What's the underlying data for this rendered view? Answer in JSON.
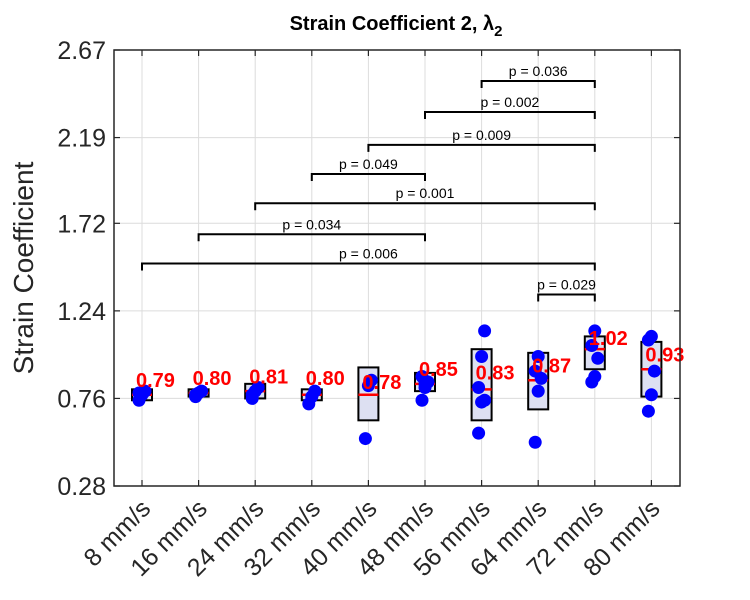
{
  "chart_data": {
    "type": "box",
    "title": "Strain Coefficient 2, λ",
    "title_subscript": "2",
    "ylabel": "Strain Coefficient",
    "xlabel": "",
    "ylim": [
      0.28,
      2.67
    ],
    "yticks": [
      "0.28",
      "0.76",
      "1.24",
      "1.72",
      "2.19",
      "2.67"
    ],
    "grid": true,
    "categories": [
      "8 mm/s",
      "16 mm/s",
      "24 mm/s",
      "32 mm/s",
      "40 mm/s",
      "48 mm/s",
      "56 mm/s",
      "64 mm/s",
      "72 mm/s",
      "80 mm/s"
    ],
    "mean_labels": [
      "0.79",
      "0.80",
      "0.81",
      "0.80",
      "0.78",
      "0.85",
      "0.83",
      "0.87",
      "1.02",
      "0.93"
    ],
    "mean_values": [
      0.79,
      0.8,
      0.81,
      0.8,
      0.78,
      0.85,
      0.83,
      0.87,
      1.02,
      0.93
    ],
    "boxes": [
      {
        "q1": 0.75,
        "median": 0.78,
        "q3": 0.81
      },
      {
        "q1": 0.77,
        "median": 0.79,
        "q3": 0.81
      },
      {
        "q1": 0.76,
        "median": 0.8,
        "q3": 0.84
      },
      {
        "q1": 0.75,
        "median": 0.78,
        "q3": 0.81
      },
      {
        "q1": 0.64,
        "median": 0.78,
        "q3": 0.93
      },
      {
        "q1": 0.8,
        "median": 0.84,
        "q3": 0.9
      },
      {
        "q1": 0.64,
        "median": 0.81,
        "q3": 1.03
      },
      {
        "q1": 0.7,
        "median": 0.86,
        "q3": 1.01
      },
      {
        "q1": 0.92,
        "median": 1.03,
        "q3": 1.1
      },
      {
        "q1": 0.77,
        "median": 0.92,
        "q3": 1.07
      }
    ],
    "points": [
      [
        0.75,
        0.78,
        0.8,
        0.79
      ],
      [
        0.77,
        0.79,
        0.8,
        0.78
      ],
      [
        0.78,
        0.8,
        0.82,
        0.76
      ],
      [
        0.73,
        0.77,
        0.8
      ],
      [
        0.54,
        0.83,
        0.86
      ],
      [
        0.75,
        0.82,
        0.85,
        0.88,
        0.84
      ],
      [
        0.57,
        0.74,
        0.75,
        0.82,
        0.99,
        1.13
      ],
      [
        0.52,
        0.8,
        0.87,
        0.91,
        0.99
      ],
      [
        0.85,
        0.88,
        0.98,
        1.05,
        1.13
      ],
      [
        0.69,
        0.78,
        0.91,
        1.08,
        1.1
      ]
    ],
    "series_color": "#0000ff",
    "median_color": "#ff0000",
    "box_fill": "#dde0f2",
    "comparisons": [
      {
        "from": 0,
        "to": 8,
        "label": "p = 0.006",
        "y": 1.5
      },
      {
        "from": 1,
        "to": 5,
        "label": "p = 0.034",
        "y": 1.66
      },
      {
        "from": 2,
        "to": 8,
        "label": "p = 0.001",
        "y": 1.83
      },
      {
        "from": 3,
        "to": 5,
        "label": "p = 0.049",
        "y": 1.99
      },
      {
        "from": 4,
        "to": 8,
        "label": "p = 0.009",
        "y": 2.15
      },
      {
        "from": 5,
        "to": 8,
        "label": "p = 0.002",
        "y": 2.33
      },
      {
        "from": 6,
        "to": 8,
        "label": "p = 0.036",
        "y": 2.5
      },
      {
        "from": 7,
        "to": 8,
        "label": "p = 0.029",
        "y": 1.33
      }
    ]
  }
}
